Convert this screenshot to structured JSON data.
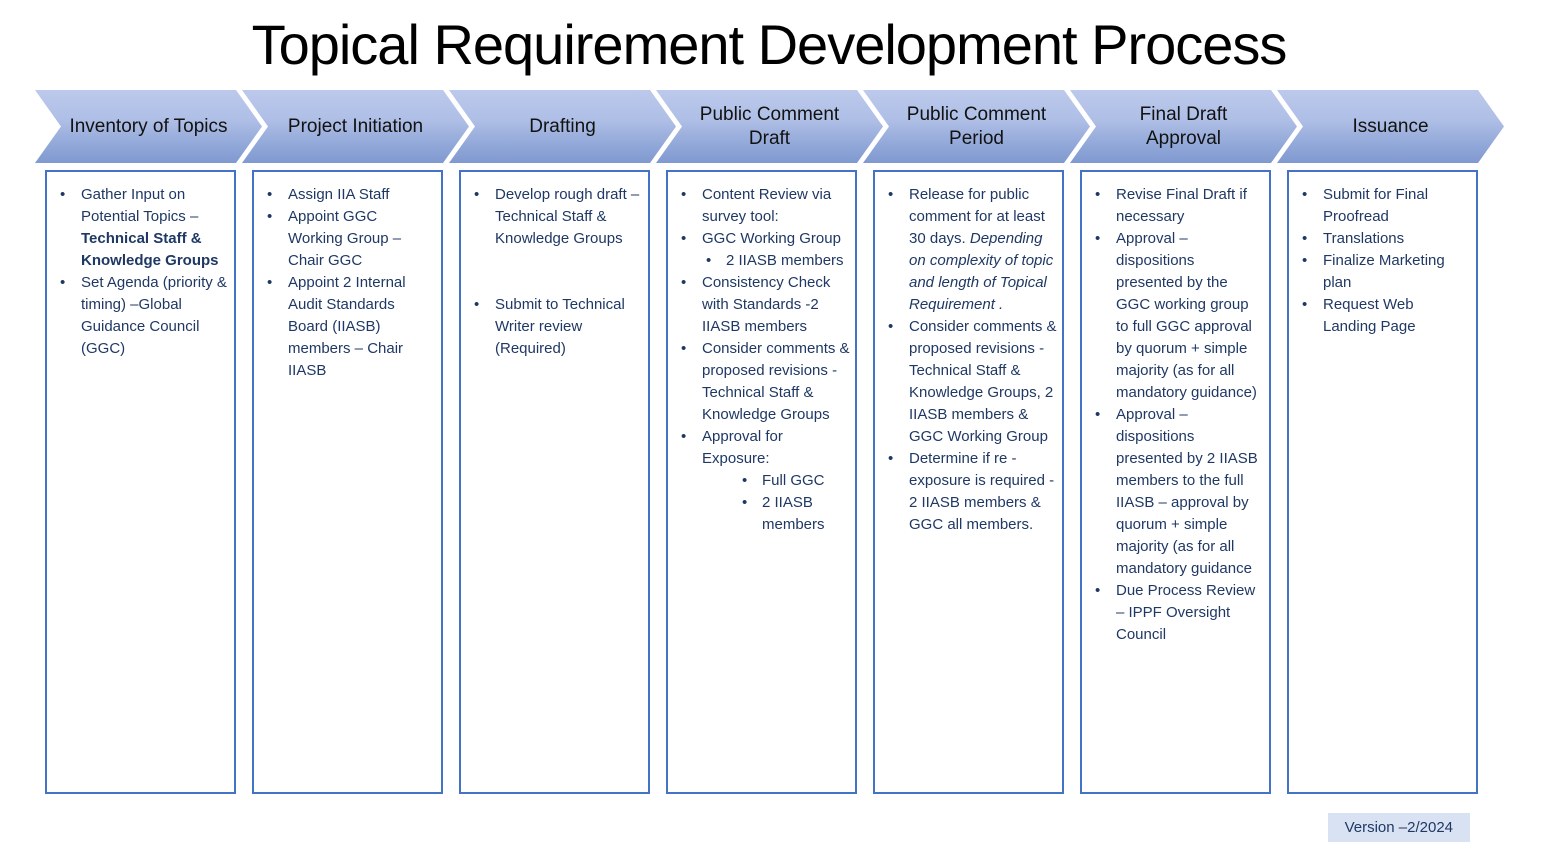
{
  "title": "Topical Requirement Development Process",
  "version_label": "Version –2/2024",
  "colors": {
    "accent_border": "#4472C4",
    "body_text": "#1F3864",
    "chevron_gradient_top": "#BCC9EC",
    "chevron_gradient_bottom": "#8099CF",
    "chevron_outline": "#5B76B2",
    "version_badge_bg": "#D9E2F2",
    "title_color": "#000000"
  },
  "stages": [
    {
      "label": "Inventory of Topics",
      "bullets": [
        {
          "level": 0,
          "runs": [
            {
              "text": "Gather Input on Potential Topics – "
            },
            {
              "text": "Technical Staff & Knowledge Groups",
              "bold": true
            }
          ]
        },
        {
          "level": 0,
          "runs": [
            {
              "text": "Set Agenda (priority & timing) –Global Guidance Council (GGC)"
            }
          ]
        }
      ]
    },
    {
      "label": "Project Initiation",
      "bullets": [
        {
          "level": 0,
          "runs": [
            {
              "text": "Assign IIA Staff"
            }
          ]
        },
        {
          "level": 0,
          "runs": [
            {
              "text": "Appoint GGC Working Group – Chair GGC"
            }
          ]
        },
        {
          "level": 0,
          "runs": [
            {
              "text": "Appoint 2 Internal Audit Standards Board (IIASB) members – Chair IIASB"
            }
          ]
        }
      ]
    },
    {
      "label": "Drafting",
      "bullets": [
        {
          "level": 0,
          "runs": [
            {
              "text": "Develop rough draft –Technical Staff & Knowledge Groups"
            }
          ]
        },
        {
          "level": 0,
          "gap_before": true,
          "runs": [
            {
              "text": "Submit to Technical Writer review (Required)"
            }
          ]
        }
      ]
    },
    {
      "label": "Public Comment Draft",
      "bullets": [
        {
          "level": 0,
          "runs": [
            {
              "text": "Content Review via survey tool:"
            }
          ]
        },
        {
          "level": 0,
          "runs": [
            {
              "text": "GGC Working Group"
            }
          ]
        },
        {
          "level": 1,
          "runs": [
            {
              "text": "2 IIASB members"
            }
          ]
        },
        {
          "level": 0,
          "runs": [
            {
              "text": "Consistency Check with Standards  -2 IIASB members"
            }
          ]
        },
        {
          "level": 0,
          "runs": [
            {
              "text": "Consider comments & proposed revisions - Technical Staff & Knowledge Groups"
            }
          ]
        },
        {
          "level": 0,
          "runs": [
            {
              "text": "Approval for Exposure:"
            }
          ]
        },
        {
          "level": 2,
          "runs": [
            {
              "text": "Full GGC"
            }
          ]
        },
        {
          "level": 2,
          "runs": [
            {
              "text": " 2 IIASB members"
            }
          ]
        }
      ]
    },
    {
      "label": "Public Comment Period",
      "bullets": [
        {
          "level": 0,
          "runs": [
            {
              "text": "Release for public comment for at least 30 days. "
            },
            {
              "text": "Depending on complexity of topic and length of Topical Requirement .",
              "italic": true
            }
          ]
        },
        {
          "level": 0,
          "runs": [
            {
              "text": "Consider comments & proposed revisions - Technical Staff & Knowledge Groups, 2  IIASB members & GGC Working Group"
            }
          ]
        },
        {
          "level": 0,
          "runs": [
            {
              "text": "Determine if re - exposure is required  - 2 IIASB members & GGC all members."
            }
          ]
        }
      ]
    },
    {
      "label": "Final Draft Approval",
      "bullets": [
        {
          "level": 0,
          "runs": [
            {
              "text": "Revise Final Draft if necessary"
            }
          ]
        },
        {
          "level": 0,
          "runs": [
            {
              "text": "Approval – dispositions presented by the GGC working group to full GGC approval by quorum + simple majority (as for all mandatory guidance)"
            }
          ]
        },
        {
          "level": 0,
          "runs": [
            {
              "text": "Approval – dispositions presented by 2 IIASB members to the full IIASB – approval by quorum + simple majority (as for all mandatory guidance"
            }
          ]
        },
        {
          "level": 0,
          "runs": [
            {
              "text": "Due Process Review – IPPF Oversight Council"
            }
          ]
        }
      ]
    },
    {
      "label": "Issuance",
      "bullets": [
        {
          "level": 0,
          "runs": [
            {
              "text": "Submit for Final Proofread"
            }
          ]
        },
        {
          "level": 0,
          "runs": [
            {
              "text": "Translations"
            }
          ]
        },
        {
          "level": 0,
          "runs": [
            {
              "text": "Finalize Marketing plan"
            }
          ]
        },
        {
          "level": 0,
          "runs": [
            {
              "text": "Request Web Landing Page"
            }
          ]
        }
      ]
    }
  ]
}
